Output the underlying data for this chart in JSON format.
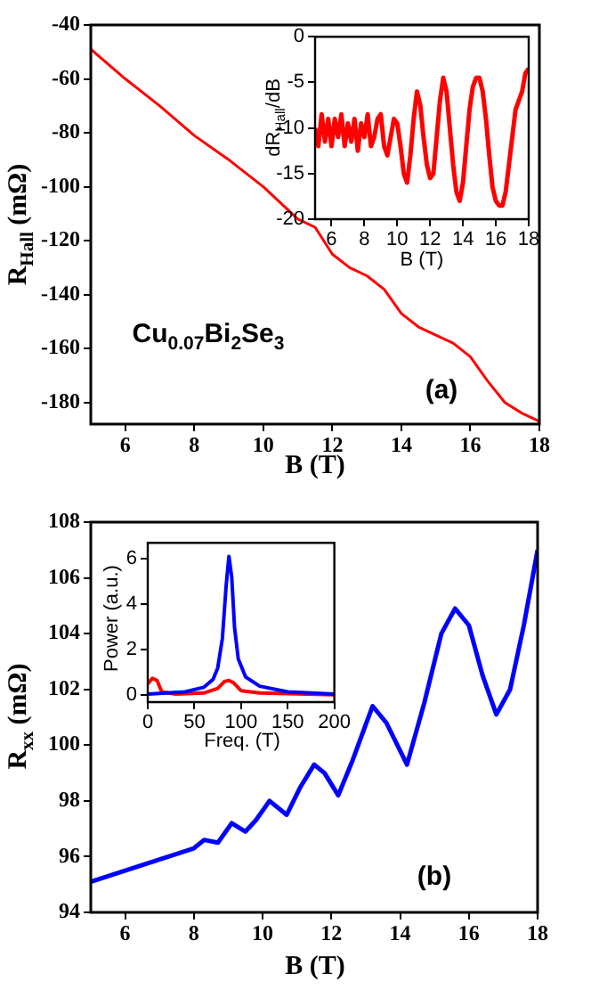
{
  "chart_data": [
    {
      "type": "line",
      "xlabel": "B (T)",
      "ylabel": "R$_{Hall}$ (mΩ)",
      "annotations": [
        "Cu$_{0.07}$Bi$_{2}$Se$_{3}$",
        "(a)"
      ],
      "xlim": [
        5,
        18
      ],
      "ylim": [
        -188,
        -40
      ],
      "xticks": [
        6,
        8,
        10,
        12,
        14,
        16,
        18
      ],
      "yticks": [
        -40,
        -60,
        -80,
        -100,
        -120,
        -140,
        -160,
        -180
      ],
      "x": [
        5,
        6,
        7,
        8,
        9,
        10,
        11,
        11.5,
        12,
        12.5,
        13,
        13.5,
        14,
        14.5,
        15,
        15.5,
        16,
        16.5,
        17,
        17.5,
        18
      ],
      "series": [
        {
          "color": "#ff0000",
          "values": [
            -49,
            -60,
            -70,
            -81,
            -90,
            -100,
            -112,
            -115,
            -125,
            -130,
            -133,
            -138,
            -147,
            -152,
            -155,
            -158,
            -163,
            -172,
            -180,
            -184,
            -187
          ]
        }
      ]
    },
    {
      "type": "line",
      "xlabel": "B (T)",
      "ylabel": "dR$_{Hall}$/dB",
      "xlim": [
        5,
        18
      ],
      "ylim": [
        -20,
        0
      ],
      "xticks": [
        6,
        8,
        10,
        12,
        14,
        16,
        18
      ],
      "yticks": [
        0,
        -5,
        -10,
        -15,
        -20
      ],
      "x": [
        5,
        5.2,
        5.4,
        5.6,
        5.8,
        6,
        6.2,
        6.4,
        6.6,
        6.8,
        7,
        7.2,
        7.4,
        7.6,
        7.8,
        8,
        8.2,
        8.4,
        8.6,
        8.8,
        9,
        9.2,
        9.4,
        9.6,
        9.8,
        10,
        10.2,
        10.4,
        10.6,
        10.8,
        11,
        11.2,
        11.4,
        11.6,
        11.8,
        12,
        12.2,
        12.4,
        12.6,
        12.8,
        13,
        13.2,
        13.4,
        13.6,
        13.8,
        14,
        14.2,
        14.4,
        14.6,
        14.8,
        15,
        15.2,
        15.4,
        15.6,
        15.8,
        16,
        16.2,
        16.4,
        16.6,
        16.8,
        17,
        17.2,
        17.4,
        17.6,
        17.8,
        18
      ],
      "series": [
        {
          "color": "#ff0000",
          "values": [
            -10,
            -12,
            -8.5,
            -11.5,
            -9,
            -12,
            -9,
            -11,
            -8.5,
            -12,
            -9.5,
            -11.5,
            -9,
            -12.5,
            -9.5,
            -11,
            -8.5,
            -12,
            -11,
            -9,
            -8.5,
            -12,
            -13,
            -11,
            -9,
            -9.5,
            -12,
            -15,
            -16,
            -13,
            -9,
            -6,
            -7.5,
            -11,
            -14,
            -15.5,
            -15,
            -11,
            -7,
            -4.5,
            -6,
            -10,
            -14,
            -17,
            -18,
            -16,
            -12,
            -8,
            -5.5,
            -4.5,
            -4.5,
            -6,
            -9,
            -13,
            -16.5,
            -18,
            -18.5,
            -18.5,
            -17,
            -14,
            -11,
            -8,
            -7,
            -6,
            -4,
            -3.5
          ]
        }
      ]
    },
    {
      "type": "line",
      "xlabel": "B (T)",
      "ylabel": "R$_{xx}$ (mΩ)",
      "annotations": [
        "(b)"
      ],
      "xlim": [
        5,
        18
      ],
      "ylim": [
        94,
        108
      ],
      "xticks": [
        6,
        8,
        10,
        12,
        14,
        16,
        18
      ],
      "yticks": [
        94,
        96,
        98,
        100,
        102,
        104,
        106,
        108
      ],
      "x": [
        5,
        5.5,
        6,
        6.5,
        7,
        7.5,
        8,
        8.3,
        8.7,
        9.1,
        9.5,
        9.8,
        10.2,
        10.7,
        11.1,
        11.5,
        11.8,
        12.2,
        12.6,
        13.2,
        13.6,
        14.2,
        14.7,
        15.2,
        15.6,
        16,
        16.4,
        16.8,
        17.2,
        17.6,
        18
      ],
      "series": [
        {
          "color": "#0000ff",
          "values": [
            95.1,
            95.3,
            95.5,
            95.7,
            95.9,
            96.1,
            96.3,
            96.6,
            96.5,
            97.2,
            96.9,
            97.3,
            98.0,
            97.5,
            98.5,
            99.3,
            99.0,
            98.2,
            99.4,
            101.4,
            100.8,
            99.3,
            101.5,
            104.0,
            104.9,
            104.3,
            102.5,
            101.1,
            102.0,
            104.3,
            107
          ]
        }
      ]
    },
    {
      "type": "line",
      "xlabel": "Freq. (T)",
      "ylabel": "Power (a.u.)",
      "xlim": [
        0,
        200
      ],
      "ylim": [
        -0.3,
        6.7
      ],
      "xticks": [
        0,
        50,
        100,
        150,
        200
      ],
      "yticks": [
        0,
        2,
        4,
        6
      ],
      "series": [
        {
          "color": "#0000ff",
          "x": [
            0,
            20,
            40,
            60,
            70,
            75,
            80,
            84,
            87,
            90,
            93,
            97,
            105,
            120,
            150,
            200
          ],
          "values": [
            0.05,
            0.1,
            0.15,
            0.35,
            0.7,
            1.2,
            2.5,
            4.8,
            6.1,
            5.2,
            3,
            1.6,
            0.8,
            0.4,
            0.15,
            0.05
          ]
        },
        {
          "color": "#ff0000",
          "x": [
            0,
            5,
            10,
            15,
            30,
            60,
            75,
            82,
            87,
            92,
            100,
            120,
            200
          ],
          "values": [
            0.5,
            0.75,
            0.65,
            0.15,
            0.05,
            0.1,
            0.3,
            0.6,
            0.65,
            0.55,
            0.2,
            0.1,
            0.02
          ]
        }
      ]
    }
  ]
}
